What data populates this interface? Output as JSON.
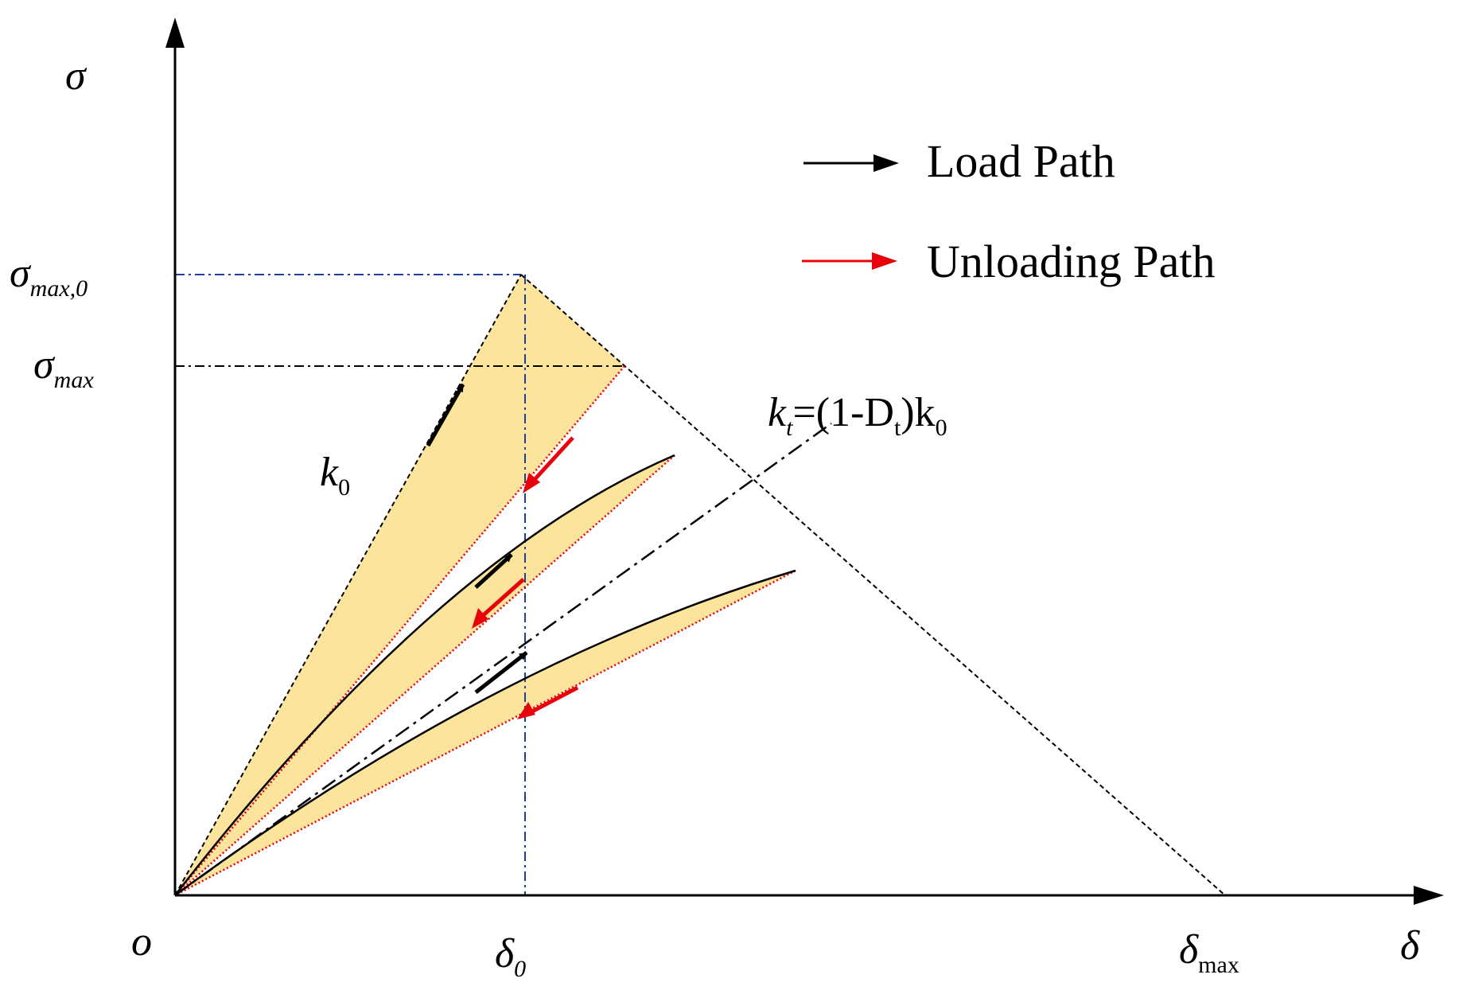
{
  "labels": {
    "sigma": "σ",
    "sigma_max0": "σ",
    "sigma_max0_sub": "max,0",
    "sigma_max": "σ",
    "sigma_max_sub": "max",
    "k0_main": "k",
    "k0_sub": "0",
    "kt_main": "k",
    "kt_sub": "t",
    "kt_eq": "=(1-D",
    "kt_eq_sub": "t",
    "kt_tail": ")k",
    "kt_tail_sub": "0",
    "origin": "o",
    "delta0": "δ",
    "delta0_sub": "0",
    "deltamax": "δ",
    "deltamax_sub": "max",
    "delta": "δ"
  },
  "legend": {
    "load": "Load Path",
    "unload": "Unloading Path"
  },
  "colors": {
    "fill": "#fce49c",
    "unload": "#e8000b",
    "guide_blue": "#1f3f9e",
    "black": "#000000"
  }
}
